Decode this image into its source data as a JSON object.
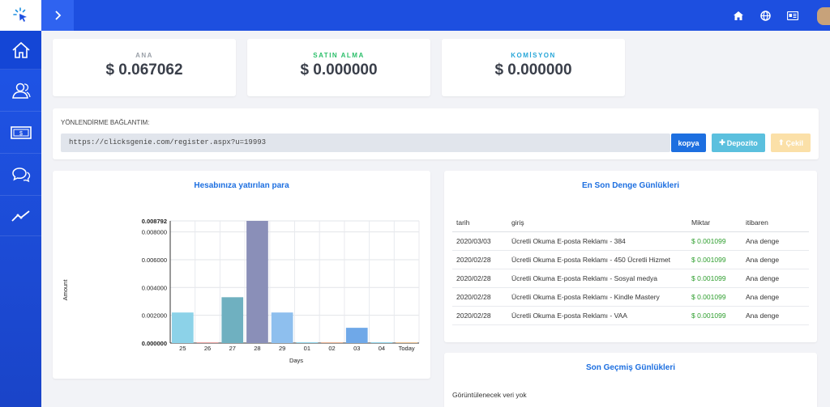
{
  "header": {
    "icons": [
      "cursor-click-icon",
      "chevron-right-icon",
      "home-icon",
      "globe-icon",
      "id-card-icon"
    ]
  },
  "sidebar": {
    "items": [
      {
        "icon": "home-icon",
        "active": true
      },
      {
        "icon": "users-icon",
        "active": false
      },
      {
        "icon": "money-icon",
        "active": false
      },
      {
        "icon": "chat-icon",
        "active": false
      },
      {
        "icon": "trend-icon",
        "active": false
      }
    ]
  },
  "stats": [
    {
      "label": "ANA",
      "value": "$ 0.067062",
      "color": "#9aa0a8"
    },
    {
      "label": "SATIN ALMA",
      "value": "$ 0.000000",
      "color": "#2bbf6a"
    },
    {
      "label": "KOMİSYON",
      "value": "$ 0.000000",
      "color": "#27a6d8"
    }
  ],
  "referral": {
    "label": "YÖNLENDİRME BAĞLANTIM:",
    "url": "https://clicksgenie.com/register.aspx?u=19993",
    "copy_label": "kopya",
    "deposit_label": "Depozito",
    "withdraw_label": "Çekil"
  },
  "deposit_panel": {
    "title": "Hesabınıza yatırılan para"
  },
  "chart_data": {
    "type": "bar",
    "categories": [
      "25",
      "26",
      "27",
      "28",
      "29",
      "01",
      "02",
      "03",
      "04",
      "Today"
    ],
    "values": [
      0.0022,
      0.0,
      0.0033,
      0.008792,
      0.0022,
      0.0,
      0.0,
      0.0011,
      0.0,
      0.0
    ],
    "colors": [
      "#8cd2e8",
      "#e8a0a0",
      "#6fb0c0",
      "#8a8fb8",
      "#8ebfee",
      "#8cd2e8",
      "#e8b090",
      "#6fa8e8",
      "#8cd2e8",
      "#e8c090"
    ],
    "xlabel": "Days",
    "ylabel": "Amount",
    "yticks": [
      "0.000000",
      "0.002000",
      "0.004000",
      "0.006000",
      "0.008000",
      "0.008792"
    ],
    "ylim": [
      0,
      0.008792
    ]
  },
  "balance_log": {
    "title": "En Son Denge Günlükleri",
    "columns": [
      "tarih",
      "giriş",
      "Miktar",
      "itibaren"
    ],
    "rows": [
      [
        "2020/03/03",
        "Ücretli Okuma E-posta Reklamı - 384",
        "$ 0.001099",
        "Ana denge"
      ],
      [
        "2020/02/28",
        "Ücretli Okuma E-posta Reklamı - 450 Ücretli Hizmet",
        "$ 0.001099",
        "Ana denge"
      ],
      [
        "2020/02/28",
        "Ücretli Okuma E-posta Reklamı - Sosyal medya",
        "$ 0.001099",
        "Ana denge"
      ],
      [
        "2020/02/28",
        "Ücretli Okuma E-posta Reklamı - Kindle Mastery",
        "$ 0.001099",
        "Ana denge"
      ],
      [
        "2020/02/28",
        "Ücretli Okuma E-posta Reklamı - VAA",
        "$ 0.001099",
        "Ana denge"
      ]
    ]
  },
  "history_log": {
    "title": "Son Geçmiş Günlükleri",
    "empty_text": "Görüntülenecek veri yok"
  }
}
